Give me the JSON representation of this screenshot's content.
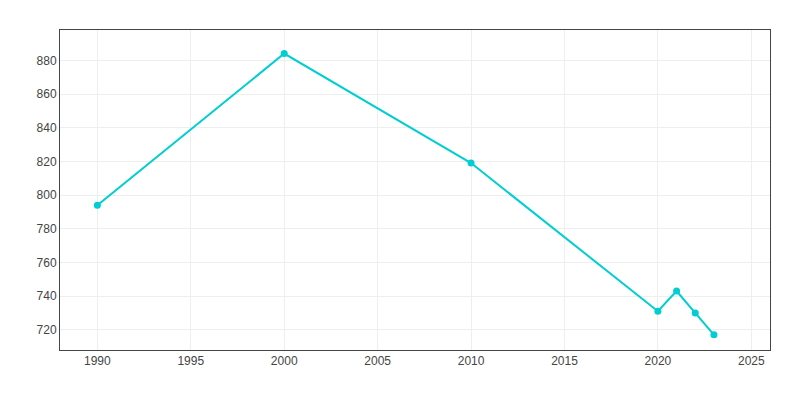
{
  "chart_data": {
    "type": "line",
    "x": [
      1990,
      2000,
      2010,
      2020,
      2021,
      2022,
      2023
    ],
    "values": [
      794,
      884,
      819,
      731,
      743,
      730,
      717
    ],
    "color": "#00CED1",
    "marker": "circle",
    "line_style": "solid",
    "xlim": [
      1988,
      2026
    ],
    "ylim": [
      708,
      898
    ],
    "xticks": [
      1990,
      1995,
      2000,
      2005,
      2010,
      2015,
      2020,
      2025
    ],
    "yticks": [
      720,
      740,
      760,
      780,
      800,
      820,
      840,
      860,
      880
    ],
    "grid": true
  }
}
